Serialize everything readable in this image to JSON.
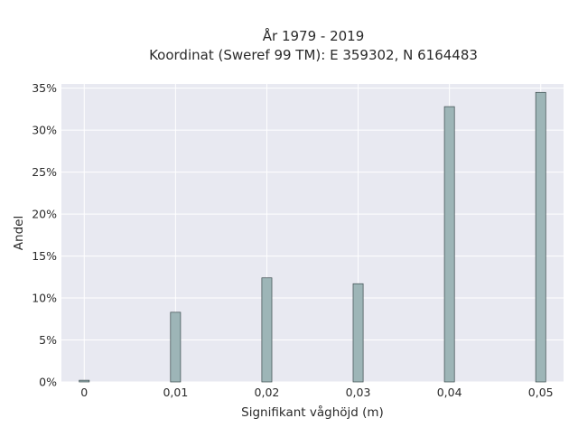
{
  "chart_data": {
    "type": "bar",
    "title": "År 1979 - 2019",
    "subtitle": "Koordinat (Sweref 99 TM): E 359302, N 6164483",
    "xlabel": "Signifikant våghöjd (m)",
    "ylabel": "Andel",
    "x": [
      0,
      0.01,
      0.02,
      0.03,
      0.04,
      0.05
    ],
    "x_tick_labels": [
      "0",
      "0,01",
      "0,02",
      "0,03",
      "0,04",
      "0,05"
    ],
    "values": [
      0.2,
      8.3,
      12.4,
      11.7,
      32.8,
      34.5
    ],
    "value_unit": "%",
    "y_tick_values": [
      0,
      5,
      10,
      15,
      20,
      25,
      30,
      35
    ],
    "y_tick_labels": [
      "0%",
      "5%",
      "10%",
      "15%",
      "20%",
      "25%",
      "30%",
      "35%"
    ],
    "xlim": [
      -0.0025,
      0.0525
    ],
    "ylim": [
      0,
      35.5
    ],
    "grid": true,
    "colors": {
      "plot_background": "#e8e9f1",
      "grid": "#ffffff",
      "bar_fill": "#9db5b7",
      "bar_stroke": "#3a4a4c"
    }
  }
}
